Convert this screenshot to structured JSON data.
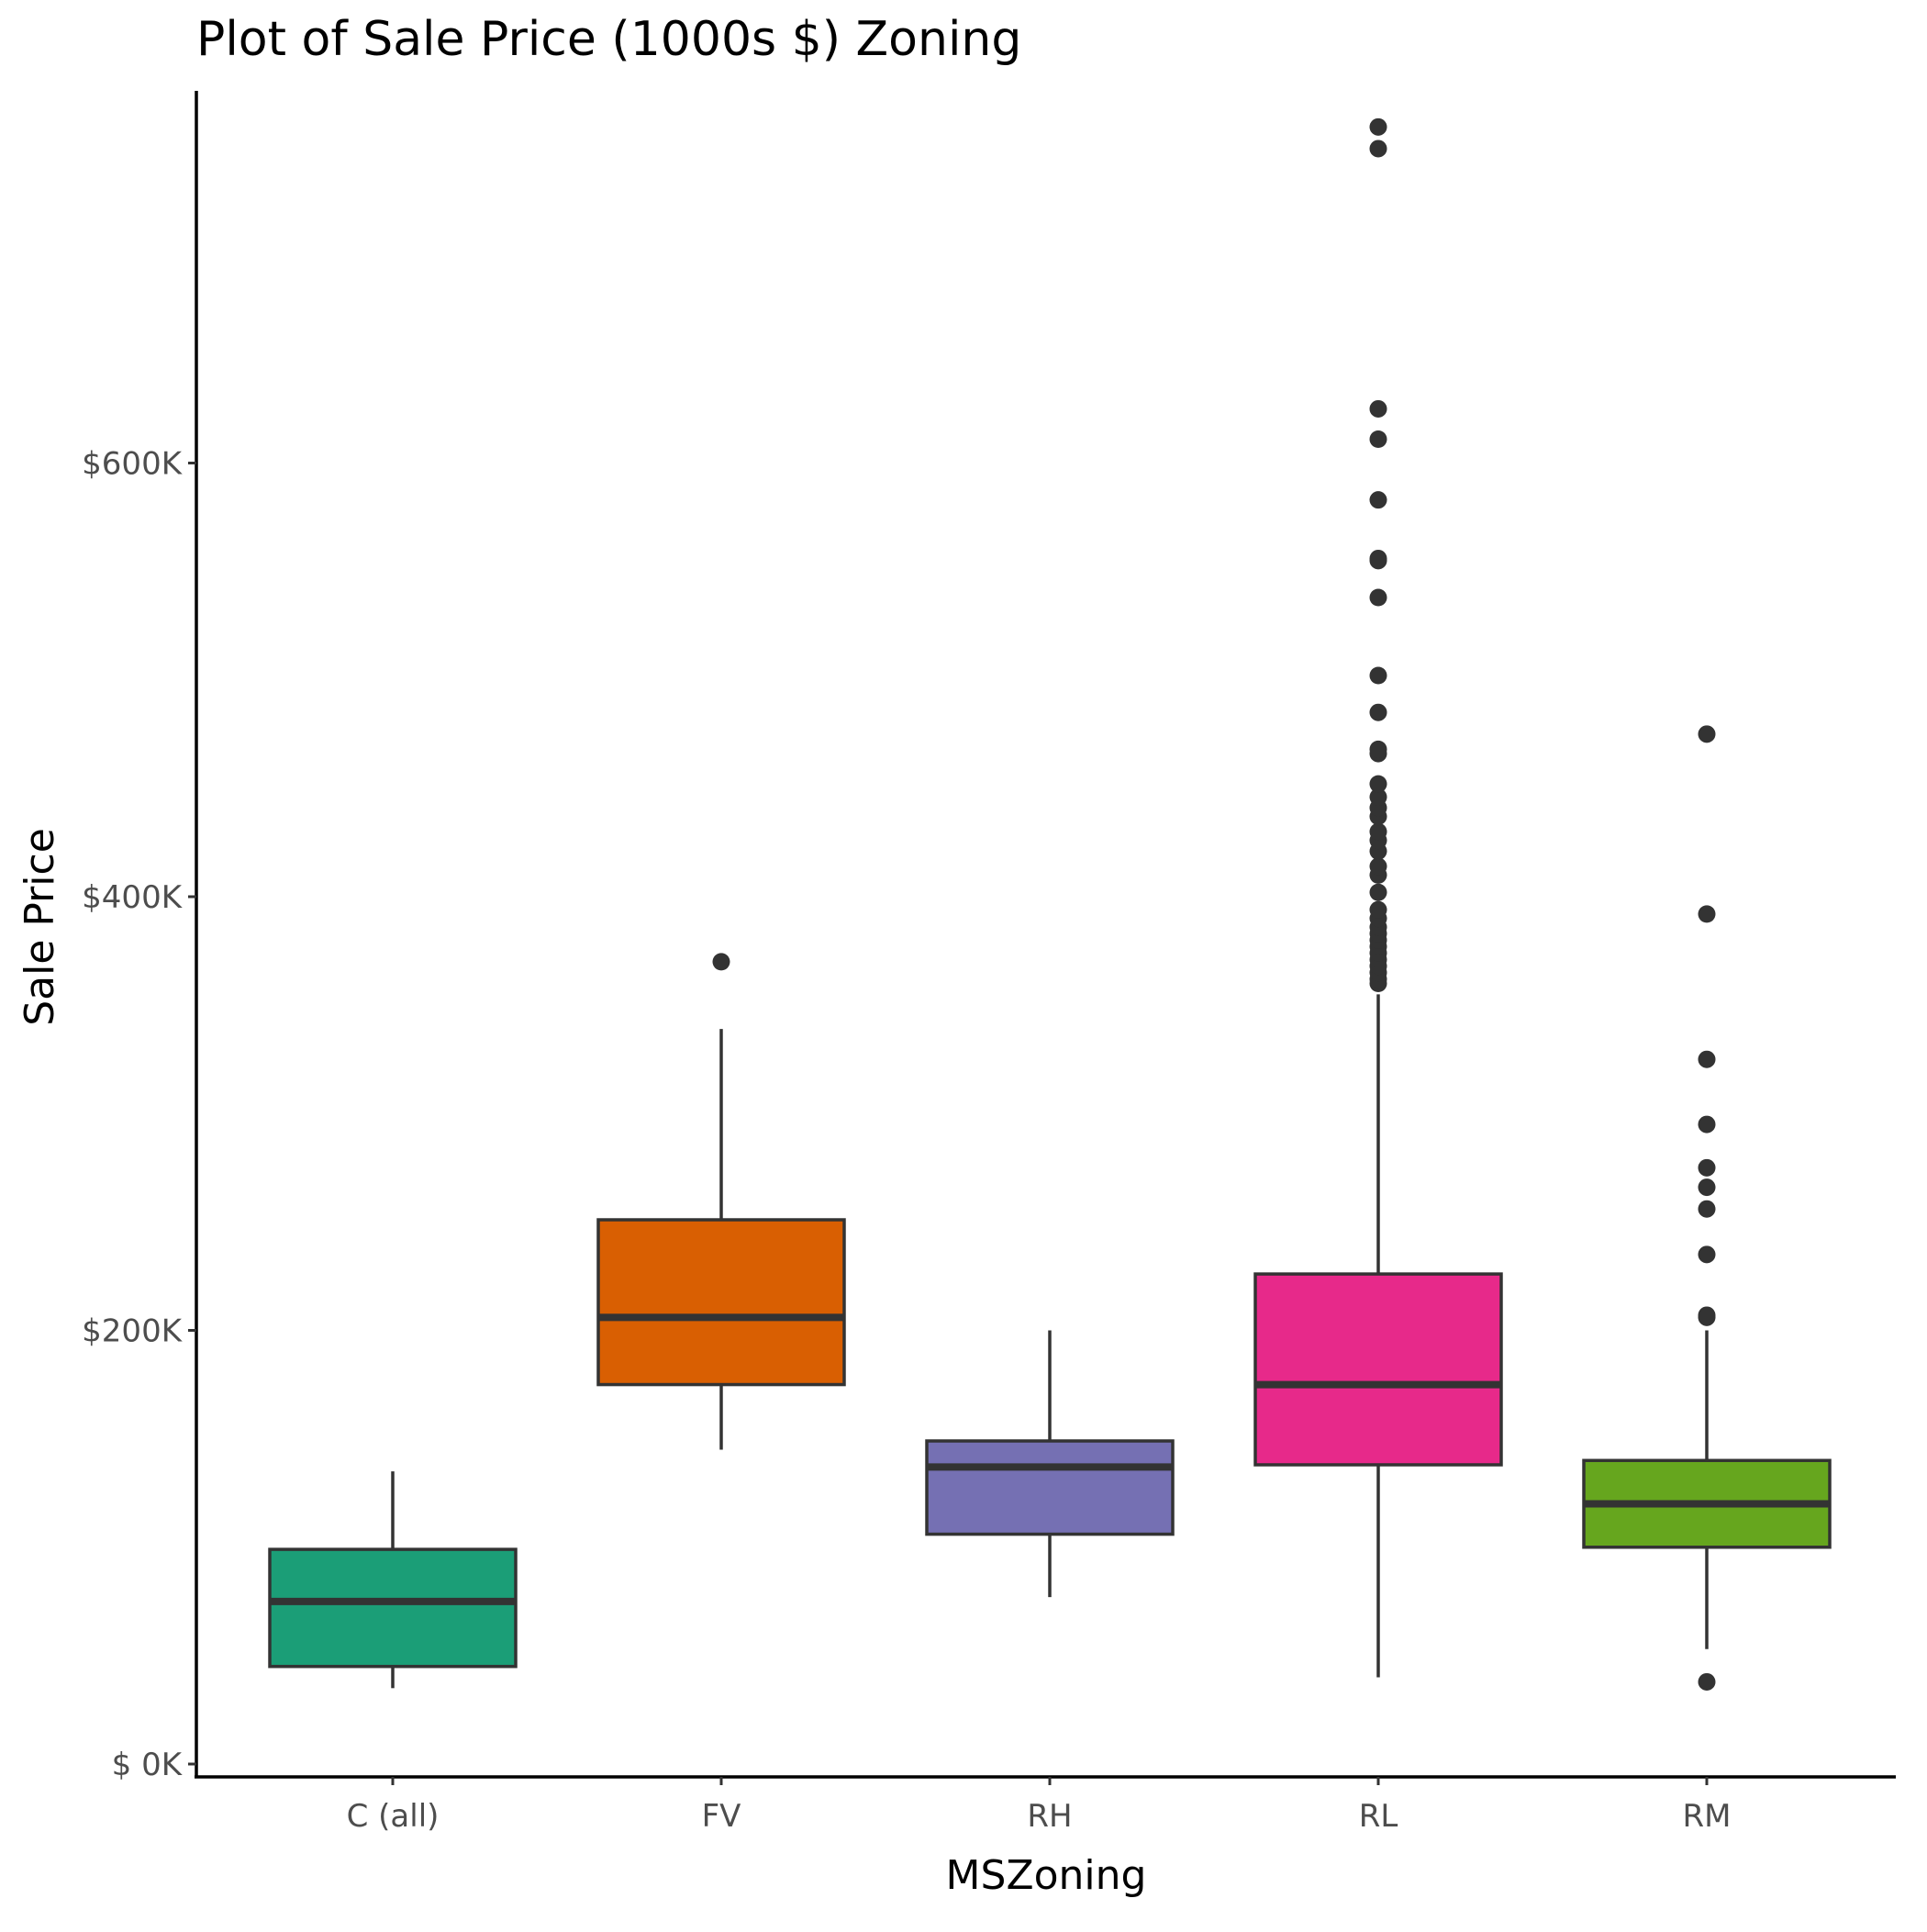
{
  "chart_data": {
    "type": "box",
    "title": "Plot of Sale Price (1000s $) Zoning",
    "xlabel": "MSZoning",
    "ylabel": "Sale Price",
    "ylim": [
      0,
      770000
    ],
    "yticks": [
      {
        "value": 0,
        "label": "$  0K"
      },
      {
        "value": 200000,
        "label": "$200K"
      },
      {
        "value": 400000,
        "label": "$400K"
      },
      {
        "value": 600000,
        "label": "$600K"
      }
    ],
    "grid": false,
    "legend": "none",
    "categories": [
      "C (all)",
      "FV",
      "RH",
      "RL",
      "RM"
    ],
    "series": [
      {
        "category": "C (all)",
        "color": "#1b9e77",
        "whisker_low": 35000,
        "q1": 45000,
        "median": 75000,
        "q3": 99000,
        "whisker_high": 135000,
        "outliers": []
      },
      {
        "category": "FV",
        "color": "#d95f02",
        "whisker_low": 145000,
        "q1": 175000,
        "median": 206000,
        "q3": 251000,
        "whisker_high": 339000,
        "outliers": [
          370000
        ]
      },
      {
        "category": "RH",
        "color": "#7570b3",
        "whisker_low": 77000,
        "q1": 106000,
        "median": 137000,
        "q3": 149000,
        "whisker_high": 200000,
        "outliers": []
      },
      {
        "category": "RL",
        "color": "#e7298a",
        "whisker_low": 40000,
        "q1": 138000,
        "median": 175000,
        "q3": 226000,
        "whisker_high": 355000,
        "outliers": [
          360000,
          362000,
          365000,
          368000,
          371000,
          374000,
          377000,
          380000,
          383000,
          386000,
          390000,
          394000,
          402000,
          410000,
          414000,
          421000,
          426000,
          430000,
          437000,
          441000,
          446000,
          452000,
          466000,
          468000,
          485000,
          502000,
          538000,
          555000,
          556000,
          583000,
          611000,
          625000,
          745000,
          755000
        ]
      },
      {
        "category": "RM",
        "color": "#66a61e",
        "whisker_low": 53000,
        "q1": 100000,
        "median": 120000,
        "q3": 140000,
        "whisker_high": 200000,
        "outliers": [
          37900,
          206000,
          207000,
          235000,
          256000,
          266000,
          275000,
          295000,
          325000,
          392000,
          475000
        ]
      }
    ]
  }
}
